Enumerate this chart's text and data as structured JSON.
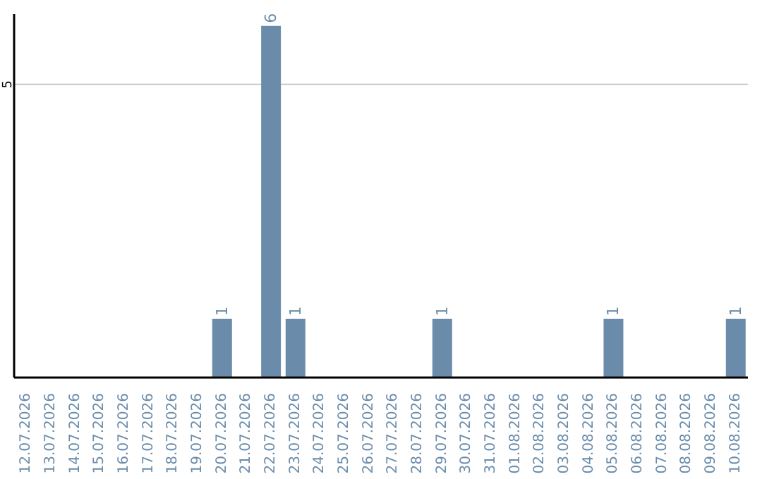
{
  "chart_data": {
    "type": "bar",
    "categories": [
      "12.07.2026",
      "13.07.2026",
      "14.07.2026",
      "15.07.2026",
      "16.07.2026",
      "17.07.2026",
      "18.07.2026",
      "19.07.2026",
      "20.07.2026",
      "21.07.2026",
      "22.07.2026",
      "23.07.2026",
      "24.07.2026",
      "25.07.2026",
      "26.07.2026",
      "27.07.2026",
      "28.07.2026",
      "29.07.2026",
      "30.07.2026",
      "31.07.2026",
      "01.08.2026",
      "02.08.2026",
      "03.08.2026",
      "04.08.2026",
      "05.08.2026",
      "06.08.2026",
      "07.08.2026",
      "08.08.2026",
      "09.08.2026",
      "10.08.2026"
    ],
    "values": [
      0,
      0,
      0,
      0,
      0,
      0,
      0,
      0,
      1,
      0,
      6,
      1,
      0,
      0,
      0,
      0,
      0,
      1,
      0,
      0,
      0,
      0,
      0,
      0,
      1,
      0,
      0,
      0,
      0,
      1
    ],
    "value_labels": [
      null,
      null,
      null,
      null,
      null,
      null,
      null,
      null,
      "1",
      null,
      "6",
      "1",
      null,
      null,
      null,
      null,
      null,
      "1",
      null,
      null,
      null,
      null,
      null,
      null,
      "1",
      null,
      null,
      null,
      null,
      "1"
    ],
    "color": "#6a8caa",
    "ylim": [
      0,
      6.2
    ],
    "yticks": [
      5
    ],
    "grid": "y"
  }
}
